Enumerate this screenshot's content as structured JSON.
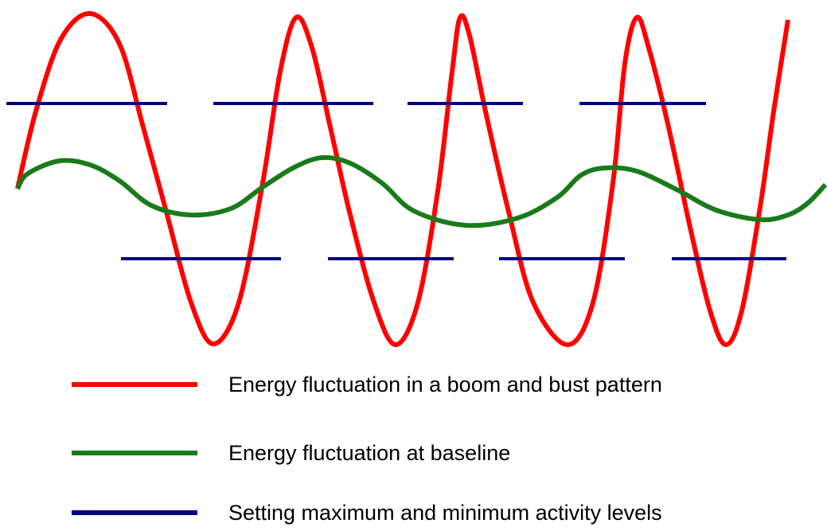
{
  "colors": {
    "boom_bust": "#ff0000",
    "baseline": "#1a7a1a",
    "activity_levels": "#000080",
    "background": "#ffffff",
    "text": "#000000"
  },
  "legend": [
    {
      "key": "boom_bust",
      "label": "Energy fluctuation in a boom and bust pattern"
    },
    {
      "key": "baseline",
      "label": "Energy fluctuation at baseline"
    },
    {
      "key": "activity_levels",
      "label": "Setting maximum and minimum activity levels"
    }
  ]
}
